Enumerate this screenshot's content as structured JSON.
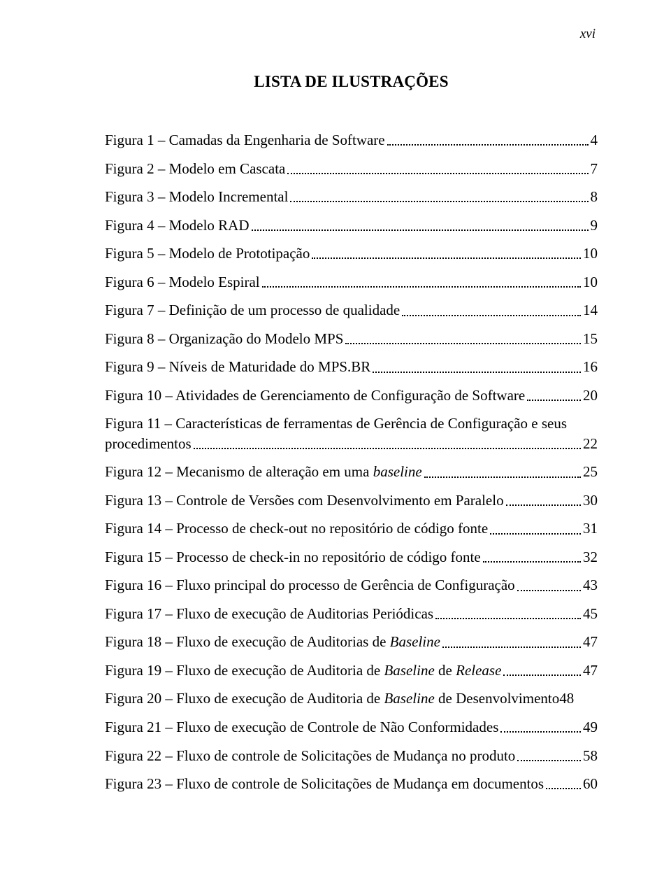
{
  "page_number": "xvi",
  "title": "LISTA DE ILUSTRAÇÕES",
  "colors": {
    "background": "#ffffff",
    "text": "#000000",
    "dots": "#000000"
  },
  "typography": {
    "font_family": "Times New Roman",
    "title_fontsize": 23,
    "title_weight": "bold",
    "body_fontsize": 21,
    "page_number_style": "italic",
    "page_number_fontsize": 19
  },
  "entries": [
    {
      "label": "Figura 1 – Camadas da Engenharia de Software",
      "page": "4"
    },
    {
      "label": "Figura 2 – Modelo em Cascata",
      "page": "7"
    },
    {
      "label": "Figura 3 – Modelo Incremental",
      "page": "8"
    },
    {
      "label": "Figura 4 – Modelo RAD",
      "page": "9"
    },
    {
      "label": "Figura 5 – Modelo de Prototipação",
      "page": "10"
    },
    {
      "label": "Figura 6 – Modelo Espiral",
      "page": "10"
    },
    {
      "label": "Figura 7 – Definição de um processo de qualidade",
      "page": "14"
    },
    {
      "label": "Figura 8 – Organização do Modelo MPS",
      "page": "15"
    },
    {
      "label": "Figura 9 – Níveis de Maturidade do MPS.BR",
      "page": "16"
    },
    {
      "label": "Figura 10 – Atividades de Gerenciamento de Configuração de Software",
      "page": "20"
    },
    {
      "label_line1": "Figura 11 – Características de ferramentas de Gerência de Configuração e seus",
      "label_line2": "procedimentos",
      "page": "22",
      "multiline": true
    },
    {
      "label": "Figura 12 – Mecanismo de alteração em uma ",
      "italic_suffix": "baseline",
      "page": "25"
    },
    {
      "label": "Figura 13 – Controle de Versões com Desenvolvimento em Paralelo",
      "page": "30"
    },
    {
      "label": "Figura 14 – Processo de check-out no repositório de código fonte",
      "page": "31"
    },
    {
      "label": "Figura 15 – Processo de check-in no repositório de código fonte",
      "page": "32"
    },
    {
      "label": "Figura 16 – Fluxo principal do processo de Gerência de Configuração",
      "page": "43"
    },
    {
      "label": "Figura 17 – Fluxo de execução de Auditorias Periódicas",
      "page": "45"
    },
    {
      "label": "Figura 18 – Fluxo de execução de Auditorias de ",
      "italic_suffix": "Baseline",
      "page": "47"
    },
    {
      "label": "Figura 19 – Fluxo de execução de Auditoria de ",
      "italic_suffix": "Baseline",
      "label_after": " de ",
      "italic_suffix2": "Release",
      "page": "47"
    },
    {
      "label": "Figura 20 – Fluxo de execução de Auditoria de ",
      "italic_suffix": "Baseline",
      "label_after": " de Desenvolvimento",
      "page": "48",
      "nodots": true
    },
    {
      "label": "Figura 21 – Fluxo de execução de Controle de Não Conformidades",
      "page": "49"
    },
    {
      "label": "Figura 22 – Fluxo de controle de Solicitações de Mudança no produto",
      "page": "58"
    },
    {
      "label": "Figura 23 – Fluxo de controle de Solicitações de Mudança em documentos",
      "page": "60"
    }
  ]
}
